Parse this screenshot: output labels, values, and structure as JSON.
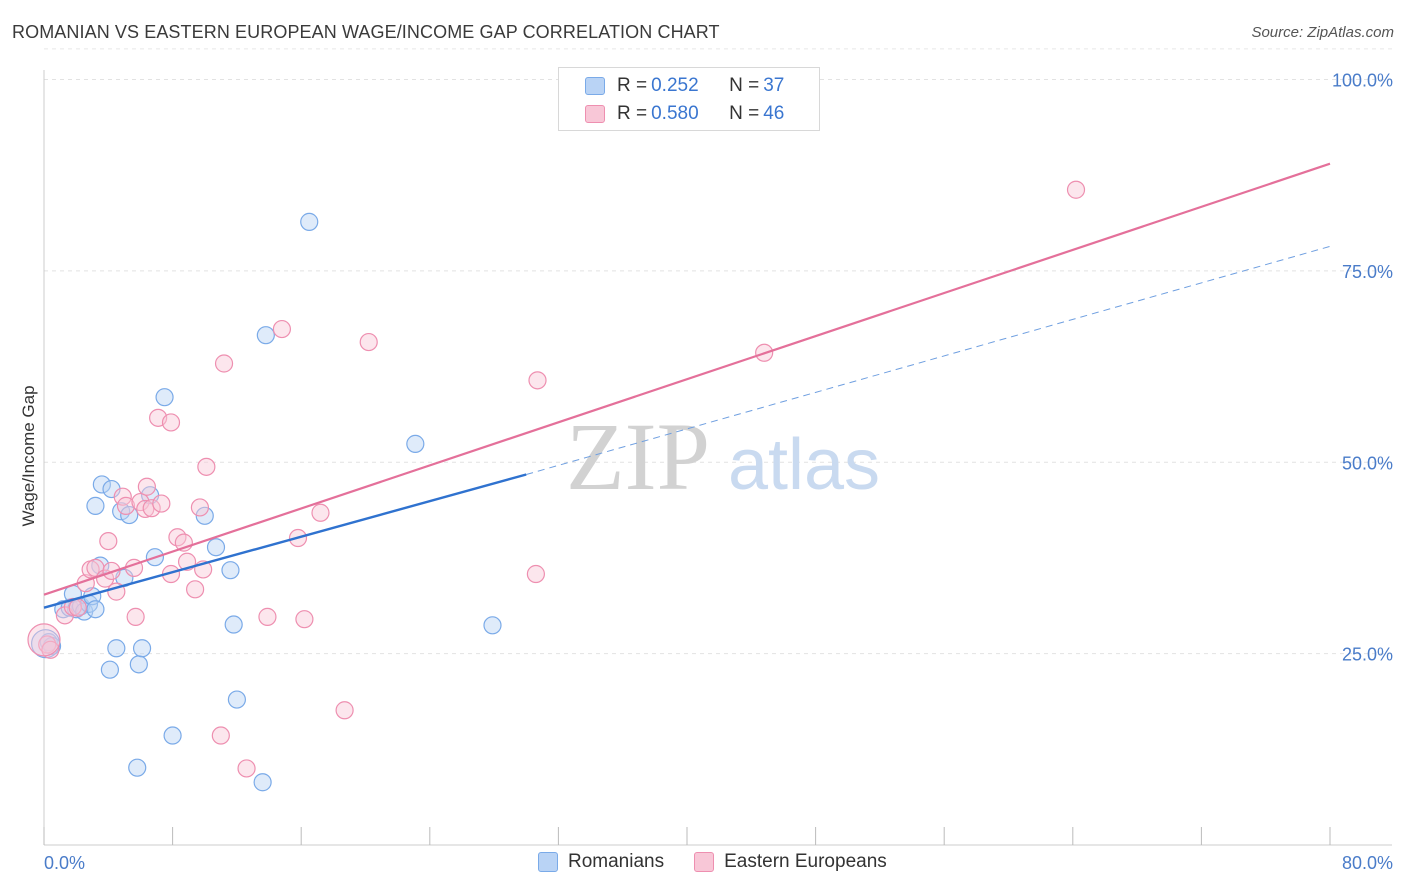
{
  "title": "ROMANIAN VS EASTERN EUROPEAN WAGE/INCOME GAP CORRELATION CHART",
  "source": "Source: ZipAtlas.com",
  "watermark": {
    "zip": "ZIP",
    "atlas": "atlas"
  },
  "legend": {
    "rows": [
      {
        "r_label": "R = ",
        "r_value": "0.252",
        "n_label": "N = ",
        "n_value": "37"
      },
      {
        "r_label": "R = ",
        "r_value": "0.580",
        "n_label": "N = ",
        "n_value": "46"
      }
    ]
  },
  "chart_data": {
    "type": "scatter",
    "title": "ROMANIAN VS EASTERN EUROPEAN WAGE/INCOME GAP CORRELATION CHART",
    "xlabel": "",
    "ylabel": "Wage/Income Gap",
    "xlim": [
      0,
      80
    ],
    "ylim": [
      0,
      105
    ],
    "x_tick_labels": [
      "0.0%",
      "80.0%"
    ],
    "y_ticks": [
      25,
      50,
      75,
      100
    ],
    "y_tick_labels": [
      "25.0%",
      "50.0%",
      "75.0%",
      "100.0%"
    ],
    "series": [
      {
        "name": "Romanians",
        "color": "#7aaae8",
        "fill": "#b9d3f5",
        "r": "0.252",
        "n": "37",
        "points": [
          [
            0.3,
            26.5
          ],
          [
            0.5,
            26.0
          ],
          [
            1.2,
            30.8
          ],
          [
            1.6,
            31.0
          ],
          [
            1.8,
            32.8
          ],
          [
            2.0,
            30.8
          ],
          [
            2.3,
            31.2
          ],
          [
            2.5,
            30.5
          ],
          [
            2.8,
            31.5
          ],
          [
            3.0,
            32.5
          ],
          [
            3.2,
            30.8
          ],
          [
            3.2,
            44.3
          ],
          [
            3.5,
            36.5
          ],
          [
            3.6,
            47.1
          ],
          [
            4.1,
            22.9
          ],
          [
            4.2,
            46.5
          ],
          [
            4.5,
            25.7
          ],
          [
            4.8,
            43.6
          ],
          [
            5.0,
            34.9
          ],
          [
            5.3,
            43.1
          ],
          [
            5.8,
            10.1
          ],
          [
            5.9,
            23.6
          ],
          [
            6.1,
            25.7
          ],
          [
            6.6,
            45.7
          ],
          [
            6.9,
            37.6
          ],
          [
            7.5,
            58.5
          ],
          [
            8.0,
            14.3
          ],
          [
            10.0,
            43.0
          ],
          [
            10.7,
            38.9
          ],
          [
            11.6,
            35.9
          ],
          [
            11.8,
            28.8
          ],
          [
            12.0,
            19.0
          ],
          [
            13.6,
            8.2
          ],
          [
            13.8,
            66.6
          ],
          [
            16.5,
            81.4
          ],
          [
            23.1,
            52.4
          ],
          [
            27.9,
            28.7
          ]
        ],
        "trend": {
          "x0": 0,
          "y0": 31.0,
          "x1": 30,
          "y1": 48.4,
          "x_ext": 80,
          "y_ext": 78.2
        }
      },
      {
        "name": "Eastern Europeans",
        "color": "#ee8fb0",
        "fill": "#f8c7d7",
        "r": "0.580",
        "n": "46",
        "points": [
          [
            0.2,
            26.2
          ],
          [
            0.4,
            25.5
          ],
          [
            1.3,
            30.0
          ],
          [
            1.8,
            31.1
          ],
          [
            2.1,
            31.0
          ],
          [
            2.6,
            34.2
          ],
          [
            2.9,
            36.0
          ],
          [
            3.2,
            36.2
          ],
          [
            3.8,
            34.8
          ],
          [
            4.0,
            39.7
          ],
          [
            4.2,
            35.8
          ],
          [
            4.5,
            33.1
          ],
          [
            4.9,
            45.5
          ],
          [
            5.1,
            44.3
          ],
          [
            5.6,
            36.2
          ],
          [
            5.7,
            29.8
          ],
          [
            6.0,
            44.8
          ],
          [
            6.3,
            43.9
          ],
          [
            6.4,
            46.8
          ],
          [
            6.7,
            44.0
          ],
          [
            7.1,
            55.8
          ],
          [
            7.3,
            44.6
          ],
          [
            7.9,
            55.2
          ],
          [
            7.9,
            35.4
          ],
          [
            8.3,
            40.2
          ],
          [
            8.7,
            39.5
          ],
          [
            8.9,
            37.0
          ],
          [
            9.4,
            33.4
          ],
          [
            9.7,
            44.1
          ],
          [
            9.9,
            36.0
          ],
          [
            10.1,
            49.4
          ],
          [
            11.0,
            14.3
          ],
          [
            11.2,
            62.9
          ],
          [
            12.6,
            10.0
          ],
          [
            13.9,
            29.8
          ],
          [
            14.8,
            67.4
          ],
          [
            15.8,
            40.1
          ],
          [
            16.2,
            29.5
          ],
          [
            17.2,
            43.4
          ],
          [
            18.7,
            17.6
          ],
          [
            20.2,
            65.7
          ],
          [
            30.6,
            35.4
          ],
          [
            30.7,
            60.7
          ],
          [
            44.8,
            64.3
          ],
          [
            64.2,
            85.6
          ],
          [
            0.0,
            26.8
          ]
        ],
        "trend": {
          "x0": 0,
          "y0": 32.7,
          "x1": 80,
          "y1": 89.0
        }
      }
    ]
  }
}
